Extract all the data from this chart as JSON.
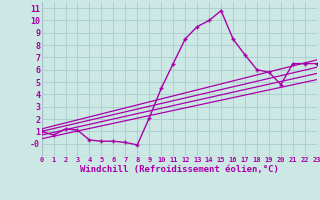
{
  "xlabel": "Windchill (Refroidissement éolien,°C)",
  "bg_color": "#cce8e4",
  "grid_color": "#aacccc",
  "line_color": "#aa00aa",
  "axis_color": "#888899",
  "x_main": [
    0,
    1,
    2,
    3,
    4,
    5,
    6,
    7,
    8,
    9,
    10,
    11,
    12,
    13,
    14,
    15,
    16,
    17,
    18,
    19,
    20,
    21,
    22,
    23
  ],
  "y_main": [
    1.0,
    0.7,
    1.2,
    1.1,
    0.3,
    0.2,
    0.2,
    0.1,
    -0.1,
    2.1,
    4.5,
    6.5,
    8.5,
    9.5,
    10.0,
    10.8,
    8.5,
    7.2,
    6.0,
    5.8,
    4.8,
    6.5,
    6.5,
    6.5
  ],
  "reg_lines": [
    {
      "x": [
        0,
        23
      ],
      "y": [
        1.2,
        6.8
      ]
    },
    {
      "x": [
        0,
        23
      ],
      "y": [
        1.0,
        6.2
      ]
    },
    {
      "x": [
        0,
        23
      ],
      "y": [
        0.7,
        5.7
      ]
    },
    {
      "x": [
        0,
        23
      ],
      "y": [
        0.4,
        5.2
      ]
    }
  ],
  "xlim": [
    0,
    23
  ],
  "ylim": [
    -1.0,
    11.5
  ],
  "yticks": [
    0,
    1,
    2,
    3,
    4,
    5,
    6,
    7,
    8,
    9,
    10,
    11
  ],
  "ytick_labels": [
    "-0",
    "1",
    "2",
    "3",
    "4",
    "5",
    "6",
    "7",
    "8",
    "9",
    "10",
    "11"
  ],
  "xticks": [
    0,
    1,
    2,
    3,
    4,
    5,
    6,
    7,
    8,
    9,
    10,
    11,
    12,
    13,
    14,
    15,
    16,
    17,
    18,
    19,
    20,
    21,
    22,
    23
  ]
}
